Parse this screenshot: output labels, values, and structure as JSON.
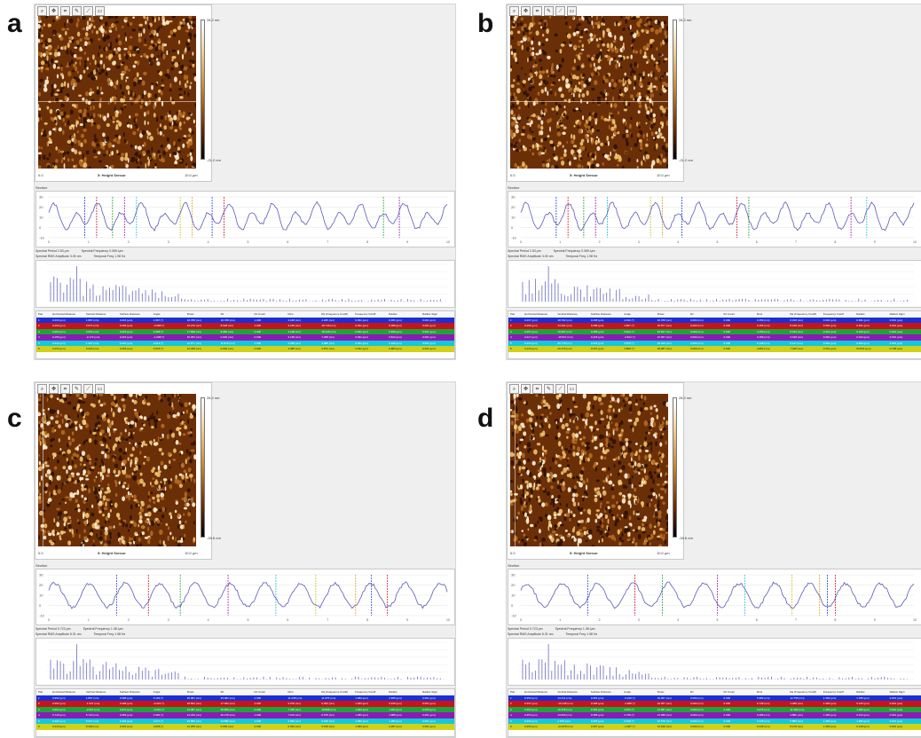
{
  "colors": {
    "profile_line": "#5a5ab8",
    "row_colors": [
      "#1c2fd6",
      "#c7131b",
      "#21a23a",
      "#8b1bb3",
      "#12c9d9",
      "#d1d11a",
      "#f2a51f"
    ]
  },
  "table_headers": [
    "Pair",
    "Horizontal Distance",
    "Vertical Distance",
    "Surface Distance",
    "Angle",
    "Rmax",
    "Rz",
    "Rz Count",
    "Rms",
    "Ra (Frequency Cutoff)",
    "Frequency Cutoff",
    "Radius",
    "Radius Sigm"
  ],
  "panels": [
    {
      "letter": "a",
      "channel": "5: Height Sensor",
      "x_min": "0.0",
      "x_max": "10.0 µm",
      "color_max": "28.2 nm",
      "color_min": "-21.2 nm",
      "section_label": "Section",
      "spectral": [
        "Spectral Period 2.53 µm",
        "Spectral Frequency 0.395 /µm",
        "Spectral RMS Amplitude 3.00 nm",
        "Temporal Freq 1.98 Hz"
      ],
      "rows": [
        [
          "1",
          "0.234 (µm)",
          "1.897 (nm)",
          "0.215 (µm)",
          "1.967 (°)",
          "18.788 (nm)",
          "18.788 (nm)",
          "1.000",
          "3.168 (nm)",
          "2.265 (nm)",
          "0.391 (µm)",
          "0.481 (µm)",
          "0.001 (µm)"
        ],
        [
          "2",
          "0.293 (µm)",
          "3.672 (nm)",
          "0.293 (µm)",
          "-0.098 (°)",
          "15.270 (nm)",
          "8.628 (nm)",
          "2.000",
          "3.168 (nm)",
          "18.749 (nm)",
          "0.391 (µm)",
          "0.988 (µm)",
          "0.001 (µm)"
        ],
        [
          "3",
          "0.252 (µm)",
          "3.654 (nm)",
          "0.215 (µm)",
          "0.498 (°)",
          "17.838 (nm)",
          "8.080 (nm)",
          "0.000",
          "4.128 (nm)",
          "18.428 (nm)",
          "0.391 (µm)",
          "0.839 (µm)",
          "0.001 (µm)"
        ],
        [
          "4",
          "0.156 (µm)",
          "-3.172 (nm)",
          "0.215 (µm)",
          "-1.098 (°)",
          "15.252 (nm)",
          "0.000 (nm)",
          "0.000",
          "3.138 (nm)",
          "7.258 (nm)",
          "0.391 (µm)",
          "0.812 (µm)",
          "0.001 (µm)"
        ],
        [
          "5",
          "0.242 (µm)",
          "1.397 (nm)",
          "0.215 (µm)",
          "0.313 (°)",
          "12.877 (nm)",
          "11.879 (nm)",
          "1.000",
          "3.098 (nm)",
          "4.988 (nm)",
          "0.391 (µm)",
          "0.228 (µm)",
          "0.001 (µm)"
        ],
        [
          "6",
          "0.234 (µm)",
          "0.263 (nm)",
          "0.263 (µm)",
          "0.018 (°)",
          "10.458 (nm)",
          "0.000 (nm)",
          "0.000",
          "3.388 (nm)",
          "4.873 (nm)",
          "0.391 (µm)",
          "0.883 (µm)",
          "0.001 (µm)"
        ]
      ]
    },
    {
      "letter": "b",
      "channel": "5: Height Sensor",
      "x_min": "0.0",
      "x_max": "10.0 µm",
      "color_max": "28.2 nm",
      "color_min": "-21.2 nm",
      "section_label": "Section",
      "spectral": [
        "Spectral Period 2.53 µm",
        "Spectral Frequency 0.395 /µm",
        "Spectral RMS Amplitude 3.00 nm",
        "Temporal Freq 1.98 Hz"
      ],
      "rows": [
        [
          "1",
          "0.237 (µm)",
          "18.792 (nm)",
          "0.238 (µm)",
          "4.432 (°)",
          "18.788 (nm)",
          "0.000 (nm)",
          "0.000",
          "3.159 (nm)",
          "8.158 (nm)",
          "0.391 (µm)",
          "0.391 (µm)",
          "0.001 (µm)"
        ],
        [
          "2",
          "0.296 (µm)",
          "13.421 (nm)",
          "0.298 (µm)",
          "4.867 (°)",
          "15.877 (nm)",
          "0.000 (nm)",
          "0.000",
          "3.165 (nm)",
          "8.168 (nm)",
          "0.391 (µm)",
          "0.621 (µm)",
          "0.001 (µm)"
        ],
        [
          "3",
          "0.257 (µm)",
          "15.837 (nm)",
          "0.258 (µm)",
          "5.812 (°)",
          "15.817 (nm)",
          "0.000 (nm)",
          "0.000",
          "3.159 (nm)",
          "8.153 (nm)",
          "0.391 (µm)",
          "0.229 (µm)",
          "0.001 (µm)"
        ],
        [
          "4",
          "0.217 (µm)",
          "-15.817 (nm)",
          "0.218 (µm)",
          "-3.812 (°)",
          "15.357 (nm)",
          "0.000 (nm)",
          "0.000",
          "3.159 (nm)",
          "3.168 (nm)",
          "0.391 (µm)",
          "0.194 (µm)",
          "0.001 (µm)"
        ],
        [
          "5",
          "0.233 (µm)",
          "26.778 (nm)",
          "0.233 (µm)",
          "4.878 (°)",
          "26.229 (nm)",
          "0.000 (nm)",
          "0.000",
          "3.138 (nm)",
          "8.117 (nm)",
          "0.391 (µm)",
          "0.533 (µm)",
          "0.001 (µm)"
        ],
        [
          "6",
          "0.233 (µm)",
          "26.176 (nm)",
          "0.237 (µm)",
          "3.898 (°)",
          "25.987 (nm)",
          "0.000 (nm)",
          "0.000",
          "3.862 (nm)",
          "7.348 (nm)",
          "0.391 (µm)",
          "63.834 (µm)",
          "0.738 (µm)"
        ]
      ]
    },
    {
      "letter": "c",
      "channel": "5: Height Sensor",
      "x_min": "0.0",
      "x_max": "10.0 µm",
      "color_max": "28.2 nm",
      "color_min": "-28.6 nm",
      "section_label": "Section",
      "spectral": [
        "Spectral Period 0.723 µm",
        "Spectral Frequency 1.38 /µm",
        "Spectral RMS Amplitude 8.31 nm",
        "Temporal Freq 1.98 Hz"
      ],
      "rows": [
        [
          "1",
          "0.992 (µm)",
          "1.867 (nm)",
          "0.998 (µm)",
          "0.129 (°)",
          "25.081 (nm)",
          "25.081 (nm)",
          "1.000",
          "11.238 (nm)",
          "11.975 (nm)",
          "1.383 (µm)",
          "2.655 (µm)",
          "0.001 (µm)"
        ],
        [
          "2",
          "0.392 (µm)",
          "-1.537 (nm)",
          "0.398 (µm)",
          "-0.222 (°)",
          "18.862 (nm)",
          "17.062 (nm)",
          "2.000",
          "6.078 (nm)",
          "6.393 (nm)",
          "1.383 (µm)",
          "0.915 (µm)",
          "0.001 (µm)"
        ],
        [
          "3",
          "0.662 (µm)",
          "-2.537 (nm)",
          "0.672 (µm)",
          "-0.201 (°)",
          "24.087 (nm)",
          "35.859 (nm)",
          "0.000",
          "7.785 (nm)",
          "18.888 (nm)",
          "1.383 (µm)",
          "1.462 (µm)",
          "0.000 (µm)"
        ],
        [
          "4",
          "0.740 (µm)",
          "5.720 (nm)",
          "0.683 (µm)",
          "0.484 (°)",
          "21.226 (nm)",
          "26.278 (nm)",
          "1.000",
          "7.103 (nm)",
          "8.078 (nm)",
          "1.383 (µm)",
          "1.888 (µm)",
          "0.001 (µm)"
        ],
        [
          "5",
          "0.492 (µm)",
          "5.017 (nm)",
          "0.492 (µm)",
          "0.371 (°)",
          "23.880 (nm)",
          "23.880 (nm)",
          "1.000",
          "4.836 (nm)",
          "6.328 (nm)",
          "1.383 (µm)",
          "1.383 (µm)",
          "0.001 (µm)"
        ],
        [
          "6",
          "0.219 (µm)",
          "8.399 (nm)",
          "0.216 (µm)",
          "0.848 (°)",
          "21.259 (nm)",
          "0.000 (nm)",
          "0.000",
          "6.263 (nm)",
          "5.878 (nm)",
          "1.383 (µm)",
          "0.287 (µm)",
          "0.001 (µm)"
        ]
      ]
    },
    {
      "letter": "d",
      "channel": "5: Height Sensor",
      "x_min": "0.0",
      "x_max": "10.0 µm",
      "color_max": "28.2 nm",
      "color_min": "-28.6 nm",
      "section_label": "Section",
      "spectral": [
        "Spectral Period 0.723 µm",
        "Spectral Frequency 1.38 /µm",
        "Spectral RMS Amplitude 8.31 nm",
        "Temporal Freq 1.98 Hz"
      ],
      "rows": [
        [
          "1",
          "0.353 (µm)",
          "13.411 (nm)",
          "0.353 (µm)",
          "-3.246 (°)",
          "16.067 (nm)",
          "0.000 (nm)",
          "0.000",
          "5.384 (nm)",
          "12.755 (nm)",
          "1.383 (µm)",
          "1.785 (µm)",
          "0.001 (µm)"
        ],
        [
          "2",
          "0.337 (µm)",
          "-16.148 (nm)",
          "0.338 (µm)",
          "-4.388 (°)",
          "16.067 (nm)",
          "0.000 (nm)",
          "0.000",
          "6.738 (nm)",
          "4.388 (nm)",
          "1.383 (µm)",
          "0.315 (µm)",
          "0.001 (µm)"
        ],
        [
          "3",
          "0.393 (µm)",
          "16.378 (nm)",
          "0.394 (µm)",
          "4.876 (°)",
          "14.087 (nm)",
          "0.000 (nm)",
          "0.000",
          "6.076 (nm)",
          "11.330 (nm)",
          "1.383 (µm)",
          "1.383 (µm)",
          "0.001 (µm)"
        ],
        [
          "4",
          "0.353 (µm)",
          "13.840 (nm)",
          "0.358 (µm)",
          "2.728 (°)",
          "21.088 (nm)",
          "0.000 (nm)",
          "0.000",
          "5.288 (nm)",
          "3.880 (nm)",
          "1.383 (µm)",
          "0.313 (µm)",
          "0.001 (µm)"
        ],
        [
          "5",
          "0.263 (µm)",
          "2.878 (nm)",
          "0.263 (µm)",
          "0.428 (°)",
          "16.578 (nm)",
          "0.000 (nm)",
          "0.000",
          "3.418 (nm)",
          "5.888 (nm)",
          "1.383 (µm)",
          "1.383 (µm)",
          "0.001 (µm)"
        ],
        [
          "6",
          "0.356 (µm)",
          "-23.878 (nm)",
          "0.357 (µm)",
          "-4.387 (°)",
          "13.648 (nm)",
          "0.000 (nm)",
          "0.000",
          "6.445 (nm)",
          "8.178 (nm)",
          "1.383 (µm)",
          "0.128 (µm)",
          "0.001 (µm)"
        ]
      ]
    }
  ]
}
